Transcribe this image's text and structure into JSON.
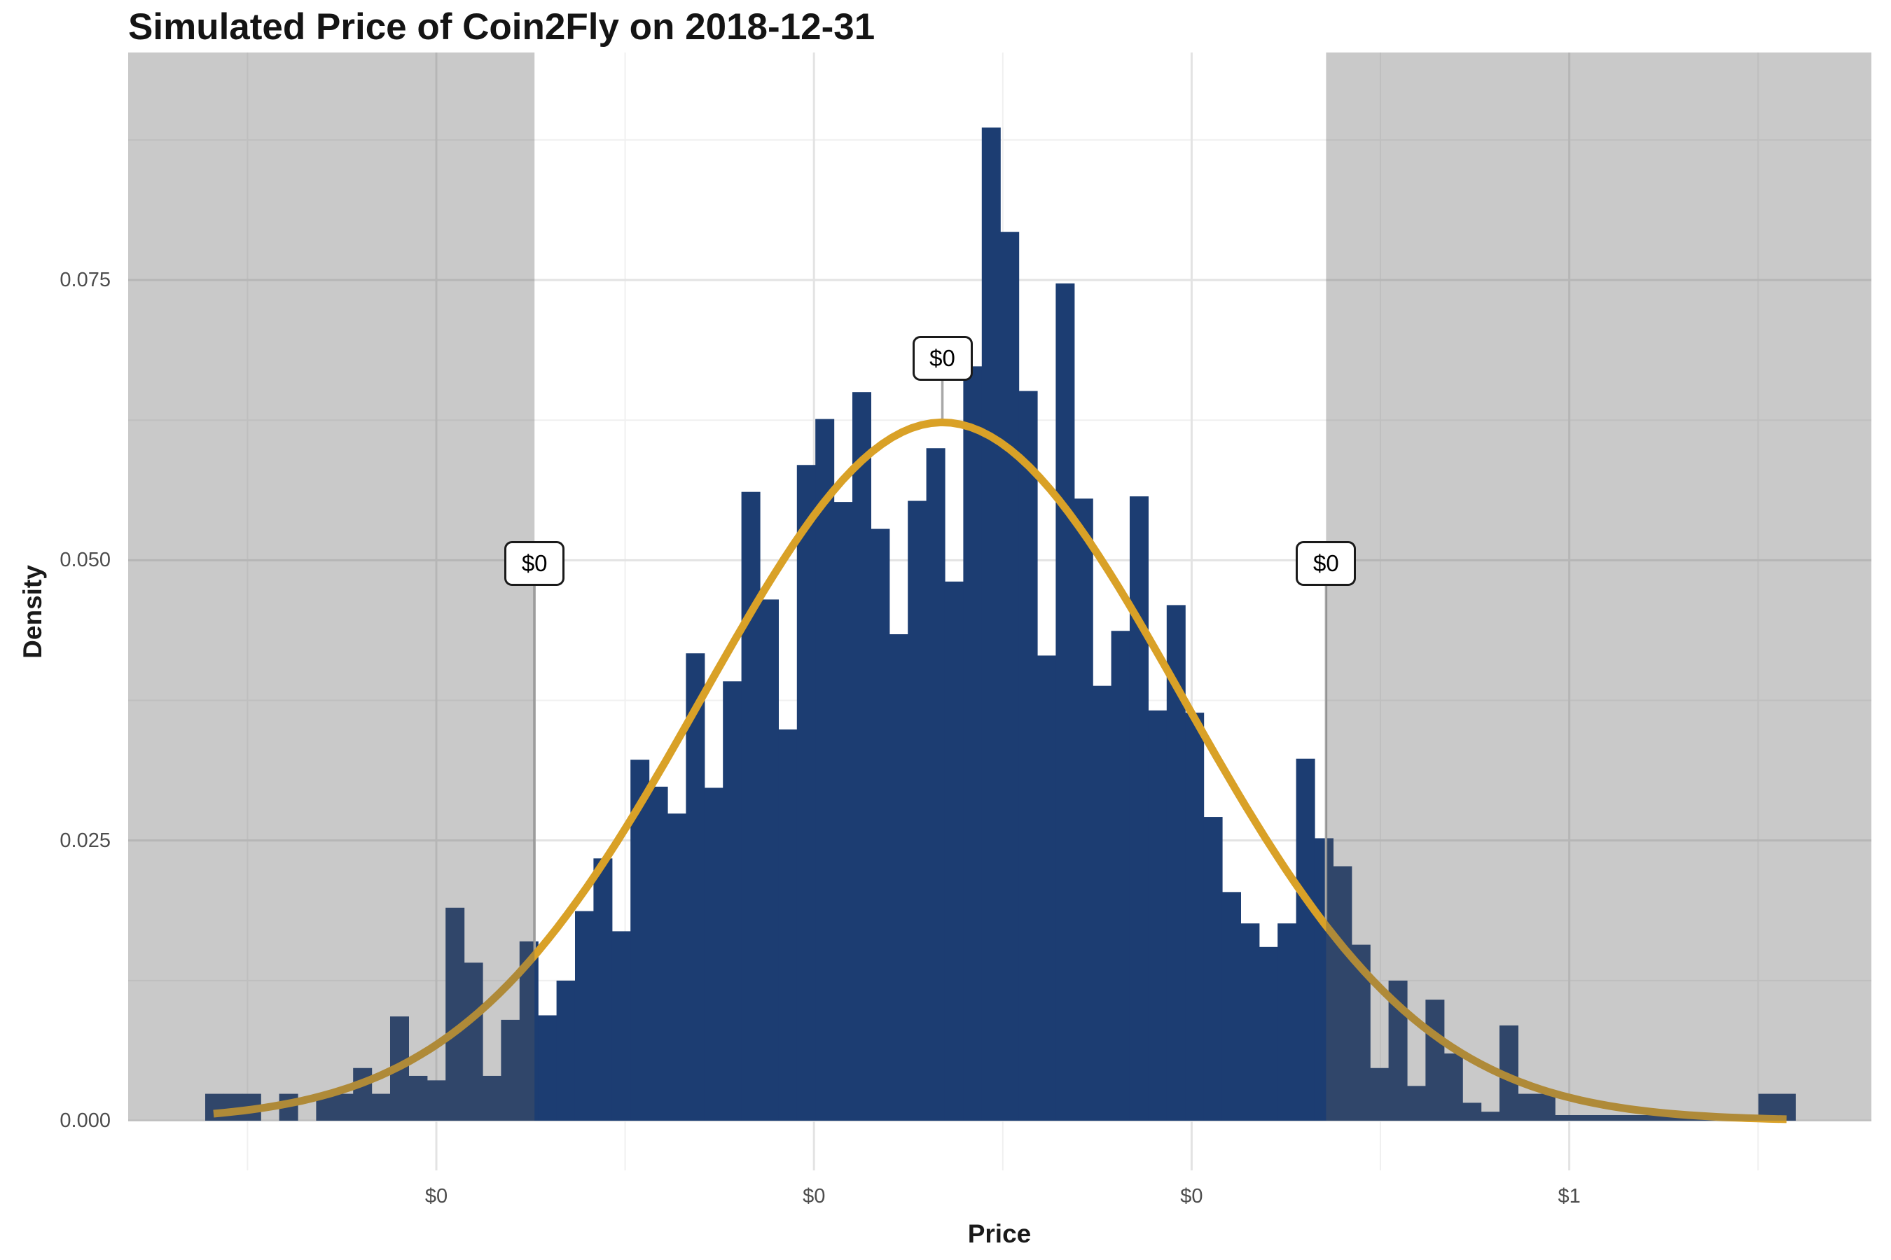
{
  "title": "Simulated Price of Coin2Fly on 2018-12-31",
  "colors": {
    "bar_fill": "#1c3d72",
    "curve": "#d9a127",
    "shade_fill": "#5c5c5c",
    "shade_opacity": 0.33,
    "grid_major": "#e3e3e3",
    "grid_minor": "#f0f0f0",
    "pointer_line": "#a8a8a8",
    "tick_text": "#4d4d4d",
    "title_text": "#141414",
    "panel_background": "#ffffff"
  },
  "chart_data": {
    "type": "histogram",
    "title": "Simulated Price of Coin2Fly on 2018-12-31",
    "xlabel": "Price",
    "ylabel": "Density",
    "x_domain": [
      0.046,
      1.2
    ],
    "y_domain": [
      -0.0044,
      0.0953
    ],
    "x_ticks": [
      {
        "value": 0.25,
        "label": "$0"
      },
      {
        "value": 0.5,
        "label": "$0"
      },
      {
        "value": 0.75,
        "label": "$0"
      },
      {
        "value": 1.0,
        "label": "$1"
      }
    ],
    "x_minor_ticks": [
      0.125,
      0.375,
      0.625,
      0.875,
      1.125
    ],
    "y_ticks": [
      {
        "value": 0.0,
        "label": "0.000"
      },
      {
        "value": 0.025,
        "label": "0.025"
      },
      {
        "value": 0.05,
        "label": "0.050"
      },
      {
        "value": 0.075,
        "label": "0.075"
      }
    ],
    "y_minor_ticks": [
      0.0125,
      0.0375,
      0.0625,
      0.0875
    ],
    "grid": true,
    "legend": false,
    "histogram": {
      "bin_start": 0.097,
      "bin_width": 0.01224,
      "densities": [
        0.0024,
        0.0024,
        0.0024,
        0,
        0.0024,
        0,
        0.0024,
        0.0024,
        0.0047,
        0.0024,
        0.0093,
        0.004,
        0.0036,
        0.019,
        0.0141,
        0.004,
        0.009,
        0.016,
        0.0094,
        0.0125,
        0.0187,
        0.0234,
        0.0169,
        0.0322,
        0.0298,
        0.0274,
        0.0417,
        0.0297,
        0.0392,
        0.0561,
        0.0465,
        0.0349,
        0.0585,
        0.0626,
        0.0552,
        0.065,
        0.0528,
        0.0434,
        0.0553,
        0.06,
        0.0481,
        0.0673,
        0.0886,
        0.0793,
        0.0651,
        0.0415,
        0.0747,
        0.0555,
        0.0388,
        0.0437,
        0.0557,
        0.0366,
        0.046,
        0.0364,
        0.0271,
        0.0204,
        0.0176,
        0.0155,
        0.0176,
        0.0323,
        0.0252,
        0.0227,
        0.0157,
        0.0047,
        0.0125,
        0.0031,
        0.0108,
        0.006,
        0.0016,
        0.0008,
        0.0085,
        0.0024,
        0.0024,
        0.0005,
        0.0005,
        0.0005,
        0.0005,
        0.0005,
        0.0005,
        0.0005,
        0.0005,
        0.0005,
        0,
        0,
        0.0024,
        0.0024,
        0,
        0
      ]
    },
    "density_curve": {
      "shape": "normal",
      "mean": 0.585,
      "sd": 0.159,
      "peak_density": 0.0623,
      "x_range": [
        0.1025,
        1.1438
      ]
    },
    "annotations": [
      {
        "x": 0.315,
        "label": "$0",
        "label_y": 0.0497
      },
      {
        "x": 0.585,
        "label": "$0",
        "label_y": 0.068
      },
      {
        "x": 0.839,
        "label": "$0",
        "label_y": 0.0497
      }
    ],
    "shaded_regions": [
      {
        "x_from": 0.046,
        "x_to": 0.315
      },
      {
        "x_from": 0.839,
        "x_to": 1.2
      }
    ]
  }
}
